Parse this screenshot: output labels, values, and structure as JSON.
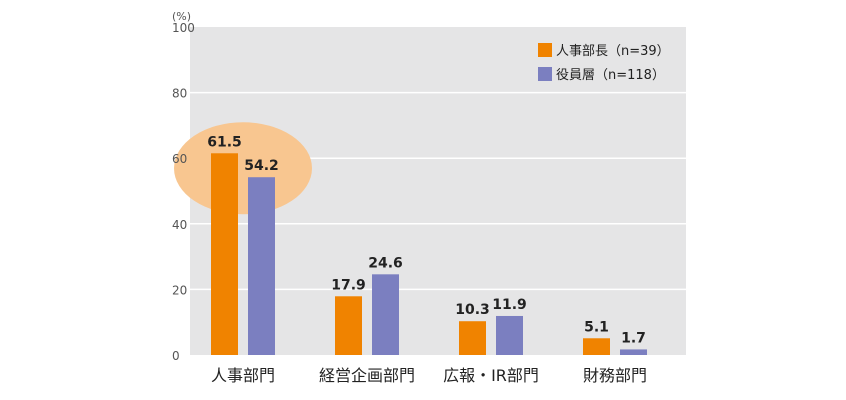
{
  "chart_data": {
    "type": "bar",
    "unit_label": "(%)",
    "ylim": [
      0,
      100
    ],
    "yticks": [
      0,
      20,
      40,
      60,
      80,
      100
    ],
    "grid": true,
    "legend_position": "top-right",
    "categories": [
      "人事部門",
      "経営企画部門",
      "広報・IR部門",
      "財務部門"
    ],
    "series": [
      {
        "name": "人事部長（n=39）",
        "color": "#f08300",
        "values": [
          61.5,
          17.9,
          10.3,
          5.1
        ],
        "labels": [
          "61.5",
          "17.9",
          "10.3",
          "5.1"
        ]
      },
      {
        "name": "役員層（n=118）",
        "color": "#7b7fc0",
        "values": [
          54.2,
          24.6,
          11.9,
          1.7
        ],
        "labels": [
          "54.2",
          "24.6",
          "11.9",
          "1.7"
        ]
      }
    ],
    "highlight_category": "人事部門",
    "colors": {
      "plot_background": "#e5e5e6",
      "gridline": "#ffffff",
      "highlight": "#f8c690"
    }
  }
}
